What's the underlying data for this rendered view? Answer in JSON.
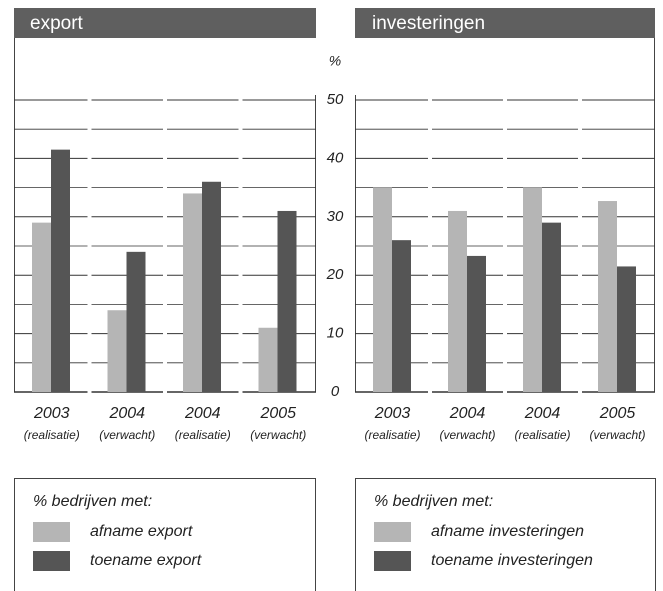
{
  "chart_data": [
    {
      "type": "bar",
      "title": "export",
      "ylabel": "%",
      "categories": [
        "2003",
        "2004",
        "2004",
        "2005"
      ],
      "category_notes": [
        "(realisatie)",
        "(verwacht)",
        "(realisatie)",
        "(verwacht)"
      ],
      "legend_title": "% bedrijven met:",
      "series": [
        {
          "name": "afname export",
          "color": "#b5b5b5",
          "values": [
            29,
            14,
            34,
            11
          ]
        },
        {
          "name": "toename export",
          "color": "#555555",
          "values": [
            41.5,
            24,
            36,
            31
          ]
        }
      ],
      "ylim": [
        0,
        50
      ],
      "yticks": [
        0,
        10,
        20,
        30,
        40,
        50
      ],
      "yminor": [
        5,
        15,
        25,
        35,
        45
      ],
      "grid": true
    },
    {
      "type": "bar",
      "title": "investeringen",
      "categories": [
        "2003",
        "2004",
        "2004",
        "2005"
      ],
      "category_notes": [
        "(realisatie)",
        "(verwacht)",
        "(realisatie)",
        "(verwacht)"
      ],
      "legend_title": "% bedrijven met:",
      "series": [
        {
          "name": "afname investeringen",
          "color": "#b5b5b5",
          "values": [
            35,
            31,
            35,
            32.7
          ]
        },
        {
          "name": "toename investeringen",
          "color": "#555555",
          "values": [
            26,
            23.3,
            29,
            21.5
          ]
        }
      ],
      "ylim": [
        0,
        50
      ],
      "yminor": [
        5,
        15,
        25,
        35,
        45
      ],
      "grid": true
    }
  ]
}
